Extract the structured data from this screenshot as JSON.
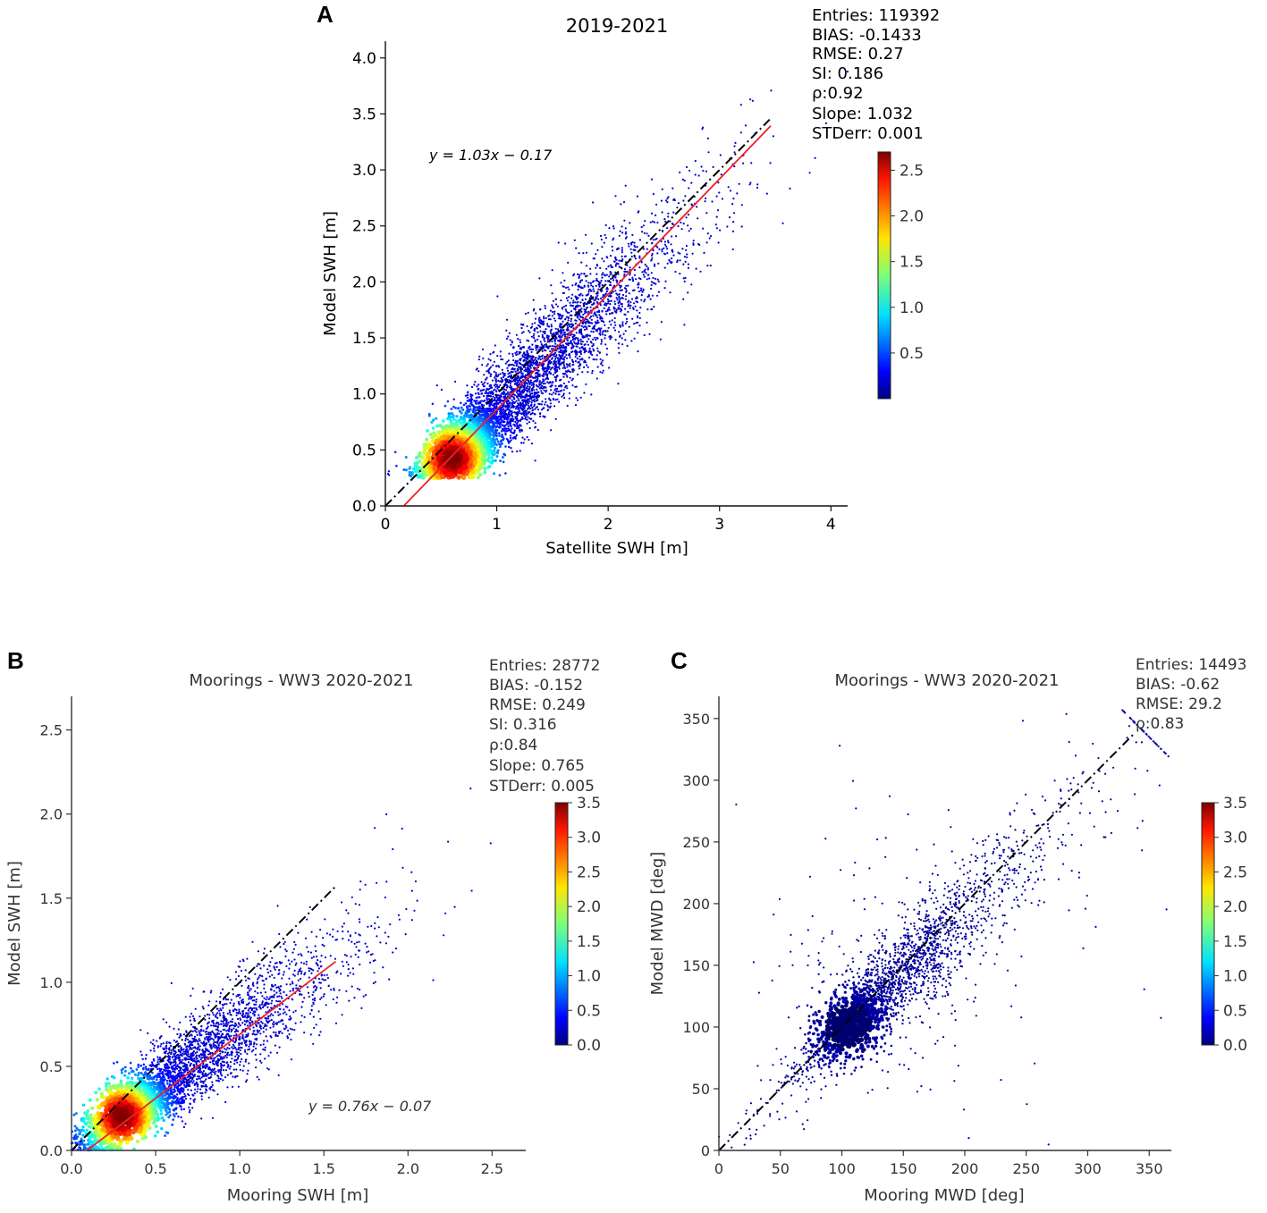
{
  "chart_data": [
    {
      "panel": "A",
      "type": "scatter",
      "title": "2019-2021",
      "xlabel": "Satellite SWH [m]",
      "ylabel": "Model SWH [m]",
      "xlim": [
        0,
        4.15
      ],
      "ylim": [
        0,
        4.15
      ],
      "xticks": [
        "0",
        "1",
        "2",
        "3",
        "4"
      ],
      "xtick_values": [
        0,
        1,
        2,
        3,
        4
      ],
      "yticks": [
        "0.0",
        "0.5",
        "1.0",
        "1.5",
        "2.0",
        "2.5",
        "3.0",
        "3.5",
        "4.0"
      ],
      "ytick_values": [
        0,
        0.5,
        1,
        1.5,
        2,
        2.5,
        3,
        3.5,
        4
      ],
      "stats": [
        "Entries: 119392",
        "BIAS: -0.1433",
        "RMSE: 0.27",
        "SI: 0.186",
        "ρ:0.92",
        "Slope: 1.032",
        "STDerr: 0.001"
      ],
      "equation": "y = 1.03x − 0.17",
      "fit": {
        "slope": 1.03,
        "intercept": -0.17,
        "x_range": [
          0.17,
          3.46
        ]
      },
      "identity": {
        "x_range": [
          0,
          3.45
        ]
      },
      "density_cloud": {
        "x_center": 0.6,
        "y_center": 0.42,
        "along_slope": 1.03,
        "x_range": [
          0.25,
          4.1
        ],
        "y_min": 0.25
      },
      "colorbar": {
        "min": 0.0,
        "max": 2.7,
        "ticks": [
          "0.5",
          "1.0",
          "1.5",
          "2.0",
          "2.5"
        ],
        "tick_values": [
          0.5,
          1.0,
          1.5,
          2.0,
          2.5
        ]
      }
    },
    {
      "panel": "B",
      "type": "scatter",
      "title": "Moorings - WW3 2020-2021",
      "xlabel": "Mooring SWH [m]",
      "ylabel": "Model SWH [m]",
      "xlim": [
        0,
        2.7
      ],
      "ylim": [
        0,
        2.7
      ],
      "xticks": [
        "0.0",
        "0.5",
        "1.0",
        "1.5",
        "2.0",
        "2.5"
      ],
      "xtick_values": [
        0,
        0.5,
        1.0,
        1.5,
        2.0,
        2.5
      ],
      "yticks": [
        "0.0",
        "0.5",
        "1.0",
        "1.5",
        "2.0",
        "2.5"
      ],
      "ytick_values": [
        0,
        0.5,
        1.0,
        1.5,
        2.0,
        2.5
      ],
      "stats": [
        "Entries: 28772",
        "BIAS: -0.152",
        "RMSE: 0.249",
        "SI: 0.316",
        "ρ:0.84",
        "Slope: 0.765",
        "STDerr: 0.005"
      ],
      "equation": "y = 0.76x − 0.07",
      "fit": {
        "slope": 0.76,
        "intercept": -0.07,
        "x_range": [
          0.09,
          1.57
        ]
      },
      "identity": {
        "x_range": [
          0,
          1.57
        ]
      },
      "density_cloud": {
        "x_center": 0.3,
        "y_center": 0.2,
        "along_slope": 0.76,
        "x_range": [
          0.02,
          2.6
        ],
        "y_min": 0.0
      },
      "colorbar": {
        "min": 0.0,
        "max": 3.5,
        "ticks": [
          "0.0",
          "0.5",
          "1.0",
          "1.5",
          "2.0",
          "2.5",
          "3.0",
          "3.5"
        ],
        "tick_values": [
          0,
          0.5,
          1.0,
          1.5,
          2.0,
          2.5,
          3.0,
          3.5
        ]
      }
    },
    {
      "panel": "C",
      "type": "scatter",
      "title": "Moorings - WW3 2020-2021",
      "xlabel": "Mooring MWD [deg]",
      "ylabel": "Model MWD [deg]",
      "xlim": [
        0,
        368
      ],
      "ylim": [
        0,
        368
      ],
      "xticks": [
        "0",
        "50",
        "100",
        "150",
        "200",
        "250",
        "300",
        "350"
      ],
      "xtick_values": [
        0,
        50,
        100,
        150,
        200,
        250,
        300,
        350
      ],
      "yticks": [
        "0",
        "50",
        "100",
        "150",
        "200",
        "250",
        "300",
        "350"
      ],
      "ytick_values": [
        0,
        50,
        100,
        150,
        200,
        250,
        300,
        350
      ],
      "stats": [
        "Entries: 14493",
        "BIAS: -0.62",
        "RMSE: 29.2",
        "ρ:0.83"
      ],
      "identity": {
        "x_range": [
          0,
          338
        ]
      },
      "density_cloud": {
        "x_center": 105,
        "y_center": 100,
        "along_slope": 1.0,
        "x_range": [
          0,
          345
        ],
        "y_min": 0
      },
      "colorbar": {
        "min": 0.0,
        "max": 3.5,
        "ticks": [
          "0.0",
          "0.5",
          "1.0",
          "1.5",
          "2.0",
          "2.5",
          "3.0",
          "3.5"
        ],
        "tick_values": [
          0,
          0.5,
          1.0,
          1.5,
          2.0,
          2.5,
          3.0,
          3.5
        ]
      }
    }
  ],
  "panel_letters": [
    "A",
    "B",
    "C"
  ]
}
